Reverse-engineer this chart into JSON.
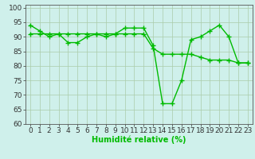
{
  "line1_x": [
    0,
    1,
    2,
    3,
    4,
    5,
    6,
    7,
    8,
    9,
    10,
    11,
    12,
    13,
    14,
    15,
    16,
    17,
    18,
    19,
    20,
    21,
    22,
    23
  ],
  "line1_y": [
    94,
    92,
    90,
    91,
    88,
    88,
    90,
    91,
    90,
    91,
    93,
    93,
    93,
    87,
    67,
    67,
    75,
    89,
    90,
    92,
    94,
    90,
    81,
    81
  ],
  "line2_x": [
    0,
    1,
    2,
    3,
    4,
    5,
    6,
    7,
    8,
    9,
    10,
    11,
    12,
    13,
    14,
    15,
    16,
    17,
    18,
    19,
    20,
    21,
    22,
    23
  ],
  "line2_y": [
    91,
    91,
    91,
    91,
    91,
    91,
    91,
    91,
    91,
    91,
    91,
    91,
    91,
    86,
    84,
    84,
    84,
    84,
    83,
    82,
    82,
    82,
    81,
    81
  ],
  "line_color": "#00bb00",
  "marker": "+",
  "markersize": 4,
  "linewidth": 1.0,
  "markeredgewidth": 1.0,
  "xlabel": "Humidité relative (%)",
  "xlim": [
    -0.5,
    23.5
  ],
  "ylim": [
    60,
    101
  ],
  "yticks": [
    60,
    65,
    70,
    75,
    80,
    85,
    90,
    95,
    100
  ],
  "xticks": [
    0,
    1,
    2,
    3,
    4,
    5,
    6,
    7,
    8,
    9,
    10,
    11,
    12,
    13,
    14,
    15,
    16,
    17,
    18,
    19,
    20,
    21,
    22,
    23
  ],
  "bg_color": "#cff0eb",
  "grid_color": "#aaccaa",
  "xlabel_fontsize": 7,
  "tick_fontsize": 6.5
}
